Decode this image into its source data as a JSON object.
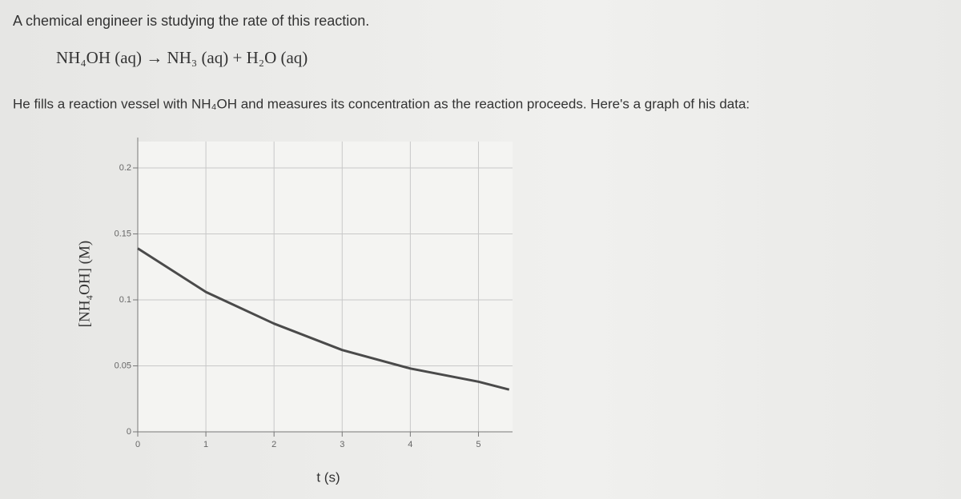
{
  "intro": "A chemical engineer is studying the rate of this reaction.",
  "equation": "NH₄OH (aq) → NH₃ (aq) + H₂O (aq)",
  "description": "He fills a reaction vessel with NH₄OH and measures its concentration as the reaction proceeds. Here's a graph of his data:",
  "chart_data": {
    "type": "line",
    "x_label": "t (s)",
    "y_label": "[NH₄OH] (M)",
    "x": [
      0,
      1,
      2,
      3,
      4,
      5,
      5.45
    ],
    "series": [
      {
        "name": "[NH₄OH]",
        "color": "#4a4a4a",
        "values": [
          0.139,
          0.106,
          0.082,
          0.062,
          0.048,
          0.038,
          0.032
        ]
      }
    ],
    "xlim": [
      0,
      5.5
    ],
    "ylim": [
      0,
      0.22
    ],
    "xticks": [
      0,
      1,
      2,
      3,
      4,
      5
    ],
    "yticks": [
      0,
      0.05,
      0.1,
      0.15,
      0.2
    ],
    "grid": true
  }
}
